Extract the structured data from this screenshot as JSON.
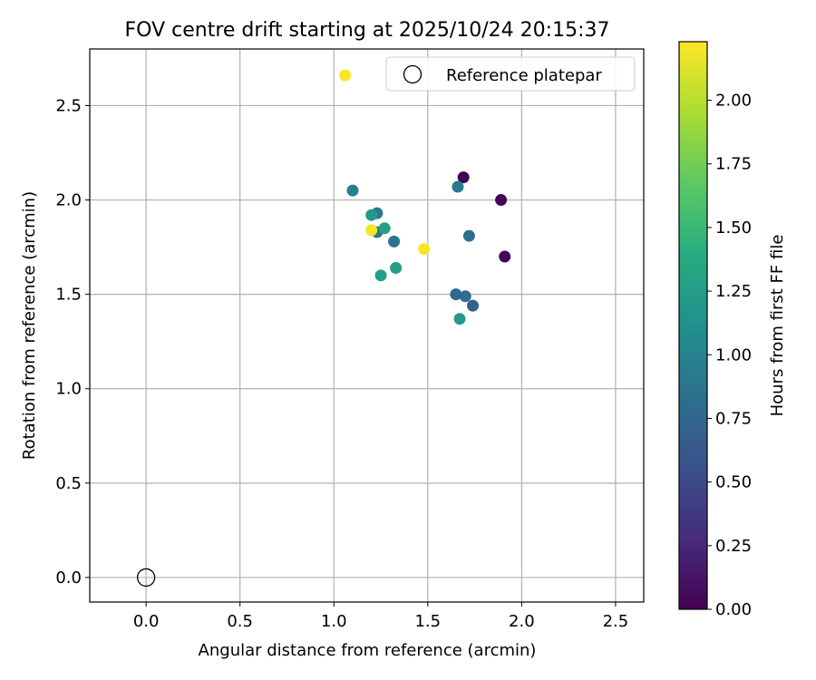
{
  "chart_data": {
    "type": "scatter",
    "title": "FOV centre drift starting at 2025/10/24 20:15:37",
    "xlabel": "Angular distance from reference (arcmin)",
    "ylabel": "Rotation from reference (arcmin)",
    "xlim": [
      -0.3,
      2.65
    ],
    "ylim": [
      -0.13,
      2.8
    ],
    "xticks": [
      0.0,
      0.5,
      1.0,
      1.5,
      2.0,
      2.5
    ],
    "yticks": [
      0.0,
      0.5,
      1.0,
      1.5,
      2.0,
      2.5
    ],
    "xtick_labels": [
      "0.0",
      "0.5",
      "1.0",
      "1.5",
      "2.0",
      "2.5"
    ],
    "ytick_labels": [
      "0.0",
      "0.5",
      "1.0",
      "1.5",
      "2.0",
      "2.5"
    ],
    "grid": true,
    "legend": {
      "placement": "top-right",
      "entries": [
        {
          "label": "Reference platepar",
          "marker": "open-circle"
        }
      ]
    },
    "reference_point": {
      "name": "Reference platepar",
      "x": 0.0,
      "y": 0.0
    },
    "colorbar": {
      "label": "Hours from first FF file",
      "colormap": "viridis",
      "range": [
        0.0,
        2.23
      ],
      "ticks": [
        0.0,
        0.25,
        0.5,
        0.75,
        1.0,
        1.25,
        1.5,
        1.75,
        2.0
      ],
      "tick_labels": [
        "0.00",
        "0.25",
        "0.50",
        "0.75",
        "1.00",
        "1.25",
        "1.50",
        "1.75",
        "2.00"
      ]
    },
    "points": [
      {
        "x": 1.69,
        "y": 2.12,
        "hours": 0.0
      },
      {
        "x": 1.89,
        "y": 2.0,
        "hours": 0.02
      },
      {
        "x": 1.91,
        "y": 1.7,
        "hours": 0.04
      },
      {
        "x": 1.74,
        "y": 1.44,
        "hours": 0.7
      },
      {
        "x": 1.65,
        "y": 1.5,
        "hours": 0.75
      },
      {
        "x": 1.7,
        "y": 1.49,
        "hours": 0.8
      },
      {
        "x": 1.72,
        "y": 1.81,
        "hours": 0.82
      },
      {
        "x": 1.32,
        "y": 1.78,
        "hours": 0.85
      },
      {
        "x": 1.23,
        "y": 1.83,
        "hours": 0.87
      },
      {
        "x": 1.23,
        "y": 1.93,
        "hours": 0.9
      },
      {
        "x": 1.66,
        "y": 2.07,
        "hours": 0.92
      },
      {
        "x": 1.1,
        "y": 2.05,
        "hours": 0.95
      },
      {
        "x": 1.2,
        "y": 1.92,
        "hours": 1.2
      },
      {
        "x": 1.27,
        "y": 1.85,
        "hours": 1.27
      },
      {
        "x": 1.33,
        "y": 1.64,
        "hours": 1.25
      },
      {
        "x": 1.25,
        "y": 1.6,
        "hours": 1.27
      },
      {
        "x": 1.67,
        "y": 1.37,
        "hours": 1.22
      },
      {
        "x": 1.2,
        "y": 1.84,
        "hours": 2.2
      },
      {
        "x": 1.48,
        "y": 1.74,
        "hours": 2.21
      },
      {
        "x": 1.06,
        "y": 2.66,
        "hours": 2.23
      }
    ]
  }
}
